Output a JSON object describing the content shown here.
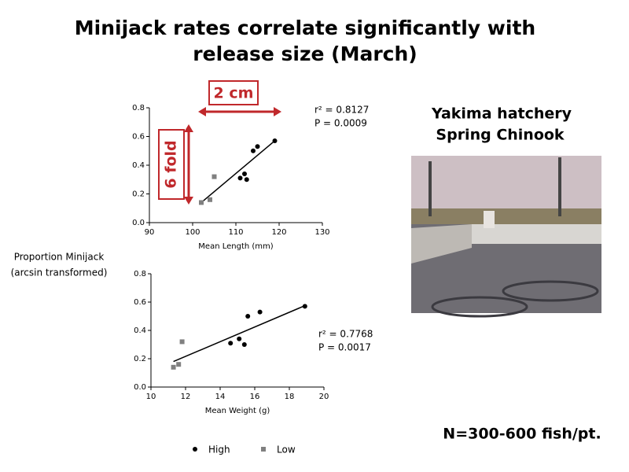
{
  "title": [
    "Minijack rates correlate significantly with",
    "release size (March)"
  ],
  "y_axis_label": [
    "Proportion Minijack",
    "(arcsin transformed)"
  ],
  "photo_caption": [
    "Yakima hatchery",
    "Spring Chinook"
  ],
  "footnote": "N=300-600 fish/pt.",
  "chart_data": [
    {
      "type": "scatter",
      "x_label": "Mean Length (mm)",
      "xlim": [
        90,
        130
      ],
      "xticks": [
        90,
        100,
        110,
        120,
        130
      ],
      "ylim": [
        0,
        0.8
      ],
      "yticks": [
        {
          "value": 0,
          "label": "0.0"
        },
        0.2,
        0.4,
        0.6,
        0.8
      ],
      "series": [
        {
          "name": "High",
          "color": "#000000",
          "marker": "circle",
          "x": [
            111,
            112,
            112.5,
            114,
            115,
            119
          ],
          "values": [
            0.31,
            0.34,
            0.3,
            0.5,
            0.53,
            0.57
          ]
        },
        {
          "name": "Low",
          "color": "#808080",
          "marker": "square",
          "x": [
            102,
            104,
            105
          ],
          "values": [
            0.14,
            0.16,
            0.32
          ]
        }
      ],
      "fit_line": {
        "x": [
          102,
          119
        ],
        "y": [
          0.14,
          0.57
        ]
      },
      "annotations": [
        "r² = 0.8127",
        "P  = 0.0009"
      ],
      "callouts": [
        "2 cm",
        "6 fold"
      ]
    },
    {
      "type": "scatter",
      "x_label": "Mean Weight (g)",
      "xlim": [
        10,
        20
      ],
      "xticks": [
        10,
        12,
        14,
        16,
        18,
        20
      ],
      "ylim": [
        0,
        0.8
      ],
      "yticks": [
        {
          "value": 0,
          "label": "0.0"
        },
        0.2,
        0.4,
        0.6,
        0.8
      ],
      "series": [
        {
          "name": "High",
          "color": "#000000",
          "marker": "circle",
          "x": [
            14.6,
            15.1,
            15.4,
            15.6,
            16.3,
            18.9
          ],
          "values": [
            0.31,
            0.34,
            0.3,
            0.5,
            0.53,
            0.57
          ]
        },
        {
          "name": "Low",
          "color": "#808080",
          "marker": "square",
          "x": [
            11.3,
            11.6,
            11.8
          ],
          "values": [
            0.14,
            0.16,
            0.32
          ]
        }
      ],
      "fit_line": {
        "x": [
          11.3,
          19
        ],
        "y": [
          0.18,
          0.58
        ]
      },
      "annotations": [
        "r² = 0.7768",
        "P  = 0.0017"
      ]
    }
  ]
}
